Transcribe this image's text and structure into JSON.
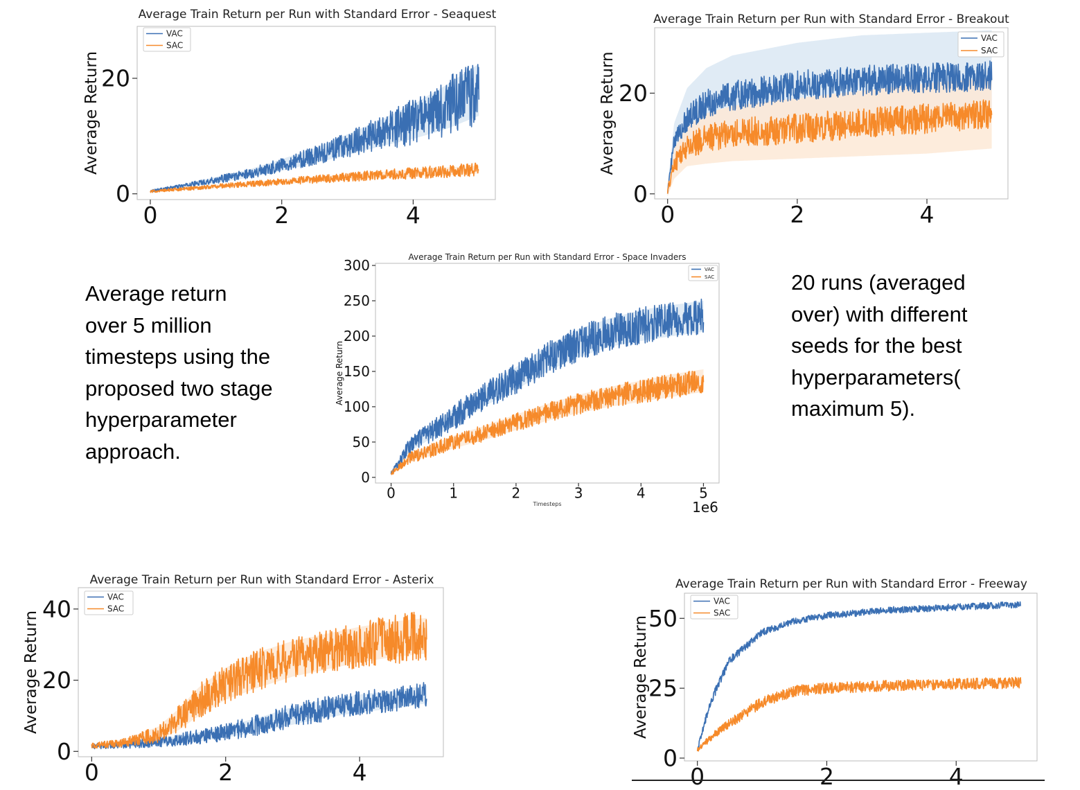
{
  "colors": {
    "vac": "#3a6fb3",
    "sac": "#f68a2a",
    "vac_band": "#dbe7f3",
    "sac_band": "#fde9d6"
  },
  "left_note": {
    "lines": [
      "Average return",
      "over 5 million",
      "timesteps using the",
      "proposed two stage",
      "hyperparameter",
      "approach."
    ]
  },
  "right_note": {
    "lines": [
      "20 runs (averaged",
      "over) with different",
      "seeds for the best",
      "hyperparameters(",
      "maximum 5)."
    ]
  },
  "chart_data": [
    {
      "id": "seaquest",
      "type": "line",
      "title": "Average Train Return per Run with Standard Error - Seaquest",
      "xlabel": "",
      "ylabel": "Average Return",
      "xlim": [
        -0.2,
        5.25
      ],
      "ylim": [
        -1,
        29
      ],
      "x_ticks": [
        "0",
        "2",
        "4"
      ],
      "y_ticks": [
        "0",
        "20"
      ],
      "legend": "top-left",
      "series": [
        {
          "name": "VAC",
          "x": [
            0,
            0.5,
            1,
            1.5,
            2,
            2.5,
            3,
            3.5,
            4,
            4.5,
            5
          ],
          "y": [
            0.5,
            1.4,
            2.4,
            3.5,
            5.0,
            6.6,
            8.5,
            10.5,
            12.5,
            15,
            18
          ],
          "noise": [
            0.2,
            0.3,
            0.6,
            0.9,
            1.2,
            1.6,
            2.2,
            3.0,
            4.0,
            5.0,
            6.0
          ],
          "band": [
            0.2,
            0.3,
            0.5,
            0.7,
            1.0,
            1.3,
            1.8,
            2.3,
            3.0,
            3.8,
            4.5
          ]
        },
        {
          "name": "SAC",
          "x": [
            0,
            1,
            2,
            3,
            4,
            5
          ],
          "y": [
            0.4,
            1.3,
            2.1,
            2.9,
            3.6,
            4.2
          ],
          "noise": [
            0.2,
            0.4,
            0.6,
            0.8,
            1.0,
            1.2
          ],
          "band": [
            0.2,
            0.3,
            0.4,
            0.5,
            0.6,
            0.7
          ]
        }
      ]
    },
    {
      "id": "breakout",
      "type": "line",
      "title": "Average Train Return per Run with Standard Error - Breakout",
      "xlabel": "",
      "ylabel": "Average Return",
      "xlim": [
        -0.2,
        5.25
      ],
      "ylim": [
        -1,
        33
      ],
      "x_ticks": [
        "0",
        "2",
        "4"
      ],
      "y_ticks": [
        "0",
        "20"
      ],
      "legend": "top-right",
      "series": [
        {
          "name": "VAC",
          "x": [
            0,
            0.1,
            0.3,
            0.6,
            1,
            2,
            3,
            4,
            5
          ],
          "y": [
            0.5,
            10,
            15,
            18,
            19.5,
            21.5,
            22.5,
            23,
            23.5
          ],
          "noise": [
            0.5,
            2,
            2.5,
            2.8,
            3,
            3,
            3,
            3,
            3
          ],
          "band": [
            1,
            4,
            6,
            7,
            8,
            8.5,
            9,
            9,
            9
          ]
        },
        {
          "name": "SAC",
          "x": [
            0,
            0.1,
            0.3,
            0.6,
            1,
            2,
            3,
            4,
            5
          ],
          "y": [
            0.5,
            6,
            9.5,
            11,
            12,
            13,
            14,
            15,
            16
          ],
          "noise": [
            0.5,
            2,
            2.5,
            2.8,
            3,
            3,
            3,
            3,
            3
          ],
          "band": [
            1,
            3,
            4,
            5,
            5.5,
            6,
            6.5,
            7,
            7
          ]
        }
      ]
    },
    {
      "id": "space-invaders",
      "type": "line",
      "title": "Average Train Return per Run with Standard Error - Space Invaders",
      "xlabel": "Timesteps",
      "ylabel": "Average Return",
      "xlim": [
        -0.25,
        5.25
      ],
      "ylim": [
        -8,
        303
      ],
      "x_ticks": [
        "0",
        "1",
        "2",
        "3",
        "4",
        "5"
      ],
      "y_ticks": [
        "0",
        "50",
        "100",
        "150",
        "200",
        "250",
        "300"
      ],
      "x_offset_label": "1e6",
      "legend": "top-right",
      "series": [
        {
          "name": "VAC",
          "x": [
            0,
            0.3,
            0.7,
            1,
            1.5,
            2,
            2.5,
            3,
            3.5,
            4,
            4.5,
            5
          ],
          "y": [
            5,
            45,
            68,
            85,
            115,
            140,
            168,
            190,
            205,
            215,
            222,
            228
          ],
          "noise": [
            3,
            12,
            15,
            18,
            20,
            22,
            24,
            25,
            26,
            26,
            26,
            26
          ],
          "band": [
            2,
            8,
            10,
            12,
            14,
            16,
            18,
            20,
            20,
            22,
            22,
            22
          ]
        },
        {
          "name": "SAC",
          "x": [
            0,
            0.3,
            0.7,
            1,
            1.5,
            2,
            2.5,
            3,
            3.5,
            4,
            4.5,
            5
          ],
          "y": [
            5,
            28,
            40,
            50,
            63,
            78,
            92,
            104,
            114,
            122,
            130,
            137
          ],
          "noise": [
            3,
            8,
            10,
            11,
            12,
            13,
            14,
            15,
            16,
            17,
            18,
            18
          ],
          "band": [
            2,
            6,
            8,
            9,
            10,
            11,
            12,
            13,
            14,
            15,
            16,
            16
          ]
        }
      ]
    },
    {
      "id": "asterix",
      "type": "line",
      "title": "Average Train Return per Run with Standard Error - Asterix",
      "xlabel": "",
      "ylabel": "Average Return",
      "xlim": [
        -0.2,
        5.25
      ],
      "ylim": [
        -1.5,
        46
      ],
      "x_ticks": [
        "0",
        "2",
        "4"
      ],
      "y_ticks": [
        "0",
        "20",
        "40"
      ],
      "legend": "top-left",
      "series": [
        {
          "name": "VAC",
          "x": [
            0,
            0.5,
            1,
            1.5,
            2,
            2.5,
            3,
            3.5,
            4,
            4.5,
            5
          ],
          "y": [
            1.5,
            1.8,
            2.6,
            3.8,
            5.5,
            7.5,
            10,
            12,
            13.5,
            14.5,
            16
          ],
          "noise": [
            0.8,
            1,
            1.4,
            2,
            2.5,
            3,
            3.5,
            3.5,
            3.5,
            3.5,
            3.5
          ],
          "band": [
            0.5,
            0.6,
            0.8,
            1.2,
            1.6,
            2,
            2.5,
            2.5,
            2.5,
            2.5,
            2.5
          ]
        },
        {
          "name": "SAC",
          "x": [
            0,
            0.5,
            1,
            1.3,
            1.6,
            2,
            2.5,
            3,
            3.5,
            4,
            4.5,
            5
          ],
          "y": [
            1.5,
            2.5,
            5,
            9,
            14,
            19,
            23,
            26,
            28,
            30,
            31.5,
            32.5
          ],
          "noise": [
            0.8,
            1.2,
            2.5,
            4,
            5,
            5.5,
            6,
            6,
            6,
            6.5,
            7,
            7
          ],
          "band": [
            0.5,
            1,
            2,
            3,
            4,
            4.5,
            5,
            5,
            5,
            5,
            5,
            5
          ]
        }
      ]
    },
    {
      "id": "freeway",
      "type": "line",
      "title": "Average Train Return per Run with Standard Error - Freeway",
      "xlabel": "",
      "ylabel": "Average Return",
      "xlim": [
        -0.2,
        5.25
      ],
      "ylim": [
        -1,
        59
      ],
      "x_ticks": [
        "0",
        "2",
        "4"
      ],
      "y_ticks": [
        "0",
        "25",
        "50"
      ],
      "legend": "top-left",
      "series": [
        {
          "name": "VAC",
          "x": [
            0,
            0.2,
            0.5,
            1,
            1.5,
            2,
            3,
            4,
            5
          ],
          "y": [
            3,
            20,
            35,
            45,
            49,
            51,
            53,
            54,
            55
          ],
          "noise": [
            0.8,
            1.5,
            1.5,
            1.2,
            1.2,
            1.2,
            1.2,
            1.2,
            1.2
          ],
          "band": [
            0.3,
            0.6,
            0.6,
            0.5,
            0.5,
            0.5,
            0.5,
            0.5,
            0.5
          ]
        },
        {
          "name": "SAC",
          "x": [
            0,
            0.3,
            0.6,
            1,
            1.5,
            2,
            3,
            4,
            5
          ],
          "y": [
            3,
            9,
            14,
            20,
            24,
            25,
            26,
            26.5,
            27
          ],
          "noise": [
            0.8,
            1.5,
            1.8,
            2,
            2,
            2,
            2,
            2,
            2
          ],
          "band": [
            0.3,
            0.6,
            0.8,
            0.8,
            0.8,
            0.8,
            0.8,
            0.8,
            0.8
          ]
        }
      ]
    }
  ]
}
